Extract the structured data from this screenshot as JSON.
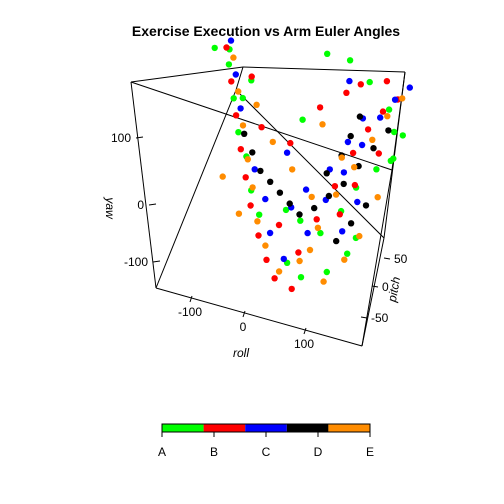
{
  "chart_data": {
    "type": "scatter3d",
    "title": "Exercise Execution vs Arm Euler Angles",
    "xlabel": "roll",
    "ylabel": "pitch",
    "zlabel": "yaw",
    "x_ticks": [
      "-100",
      "0",
      "100"
    ],
    "y_ticks": [
      "50",
      "0",
      "-50"
    ],
    "z_ticks": [
      "100",
      "0",
      "-100"
    ],
    "xlim": [
      -180,
      180
    ],
    "ylim": [
      -90,
      90
    ],
    "zlim": [
      -180,
      180
    ],
    "colorkey": {
      "labels": [
        "A",
        "B",
        "C",
        "D",
        "E"
      ],
      "colors": [
        "#00ff00",
        "#ff0000",
        "#0000ff",
        "#000000",
        "#ff8c00"
      ]
    },
    "series": [
      {
        "name": "A",
        "color": "#00ff00",
        "points": [
          [
            -140,
            60,
            120
          ],
          [
            -120,
            40,
            80
          ],
          [
            -100,
            20,
            40
          ],
          [
            -80,
            10,
            10
          ],
          [
            -60,
            -10,
            -30
          ],
          [
            -40,
            -20,
            -60
          ],
          [
            -120,
            70,
            60
          ],
          [
            -150,
            80,
            130
          ],
          [
            20,
            80,
            170
          ],
          [
            60,
            80,
            170
          ],
          [
            100,
            70,
            150
          ],
          [
            140,
            60,
            120
          ],
          [
            160,
            40,
            100
          ],
          [
            170,
            20,
            70
          ],
          [
            -20,
            30,
            -80
          ],
          [
            0,
            40,
            -100
          ],
          [
            30,
            50,
            -120
          ],
          [
            60,
            60,
            -80
          ],
          [
            80,
            70,
            -40
          ],
          [
            120,
            60,
            10
          ],
          [
            150,
            50,
            40
          ],
          [
            170,
            50,
            90
          ],
          [
            -160,
            50,
            150
          ],
          [
            -90,
            40,
            120
          ],
          [
            10,
            -20,
            -130
          ],
          [
            40,
            -30,
            -140
          ],
          [
            90,
            -40,
            -110
          ],
          [
            130,
            -50,
            -60
          ],
          [
            150,
            -60,
            -20
          ],
          [
            -10,
            60,
            60
          ]
        ]
      },
      {
        "name": "B",
        "color": "#ff0000",
        "points": [
          [
            -150,
            70,
            140
          ],
          [
            -130,
            50,
            100
          ],
          [
            -110,
            30,
            60
          ],
          [
            -90,
            10,
            20
          ],
          [
            -70,
            -10,
            -10
          ],
          [
            -50,
            -30,
            -40
          ],
          [
            -30,
            -40,
            -80
          ],
          [
            -10,
            -50,
            -110
          ],
          [
            10,
            -60,
            -130
          ],
          [
            40,
            -40,
            -90
          ],
          [
            60,
            -20,
            -40
          ],
          [
            80,
            0,
            10
          ],
          [
            100,
            20,
            60
          ],
          [
            120,
            30,
            100
          ],
          [
            140,
            40,
            130
          ],
          [
            160,
            50,
            150
          ],
          [
            100,
            -20,
            -20
          ],
          [
            120,
            -10,
            30
          ],
          [
            150,
            10,
            80
          ],
          [
            -60,
            20,
            60
          ],
          [
            -20,
            40,
            30
          ],
          [
            20,
            60,
            90
          ],
          [
            60,
            70,
            120
          ],
          [
            90,
            60,
            150
          ],
          [
            130,
            70,
            160
          ],
          [
            40,
            -60,
            -140
          ],
          [
            0,
            -30,
            -60
          ],
          [
            -100,
            60,
            110
          ]
        ]
      },
      {
        "name": "C",
        "color": "#0000ff",
        "points": [
          [
            -145,
            75,
            150
          ],
          [
            -125,
            55,
            110
          ],
          [
            -105,
            35,
            70
          ],
          [
            -60,
            0,
            0
          ],
          [
            -30,
            -20,
            -30
          ],
          [
            -10,
            -40,
            -70
          ],
          [
            20,
            -50,
            -100
          ],
          [
            50,
            -30,
            -60
          ],
          [
            70,
            -10,
            -10
          ],
          [
            90,
            10,
            30
          ],
          [
            110,
            30,
            70
          ],
          [
            130,
            50,
            110
          ],
          [
            150,
            60,
            140
          ],
          [
            170,
            70,
            160
          ],
          [
            60,
            20,
            20
          ],
          [
            80,
            40,
            60
          ],
          [
            100,
            50,
            100
          ],
          [
            30,
            0,
            -10
          ],
          [
            10,
            -10,
            -40
          ],
          [
            -20,
            30,
            20
          ],
          [
            70,
            60,
            150
          ],
          [
            110,
            -30,
            -40
          ],
          [
            130,
            -20,
            10
          ]
        ]
      },
      {
        "name": "D",
        "color": "#000000",
        "points": [
          [
            -90,
            20,
            40
          ],
          [
            -70,
            10,
            20
          ],
          [
            -50,
            0,
            0
          ],
          [
            -30,
            -5,
            -10
          ],
          [
            -10,
            -10,
            -20
          ],
          [
            10,
            -15,
            -30
          ],
          [
            30,
            -20,
            -40
          ],
          [
            50,
            -10,
            -30
          ],
          [
            70,
            0,
            -10
          ],
          [
            90,
            10,
            10
          ],
          [
            110,
            20,
            40
          ],
          [
            130,
            30,
            70
          ],
          [
            150,
            40,
            100
          ],
          [
            100,
            -30,
            -60
          ],
          [
            120,
            -20,
            -30
          ],
          [
            140,
            -10,
            0
          ],
          [
            60,
            10,
            20
          ],
          [
            80,
            20,
            50
          ],
          [
            90,
            30,
            80
          ],
          [
            100,
            40,
            110
          ]
        ]
      },
      {
        "name": "E",
        "color": "#ff8c00",
        "points": [
          [
            -135,
            65,
            130
          ],
          [
            -115,
            45,
            90
          ],
          [
            -95,
            25,
            50
          ],
          [
            -75,
            5,
            10
          ],
          [
            -55,
            -15,
            -20
          ],
          [
            -35,
            -35,
            -60
          ],
          [
            -15,
            -45,
            -90
          ],
          [
            15,
            -55,
            -120
          ],
          [
            45,
            -45,
            -100
          ],
          [
            65,
            -25,
            -50
          ],
          [
            85,
            -5,
            0
          ],
          [
            105,
            15,
            40
          ],
          [
            125,
            35,
            80
          ],
          [
            145,
            45,
            120
          ],
          [
            165,
            55,
            150
          ],
          [
            -80,
            40,
            80
          ],
          [
            -40,
            20,
            40
          ],
          [
            0,
            10,
            10
          ],
          [
            40,
            0,
            -20
          ],
          [
            60,
            -40,
            -80
          ],
          [
            90,
            -50,
            -120
          ],
          [
            120,
            -40,
            -80
          ],
          [
            140,
            -30,
            -40
          ],
          [
            160,
            -10,
            20
          ],
          [
            30,
            50,
            70
          ],
          [
            70,
            40,
            30
          ],
          [
            -110,
            -10,
            -20
          ],
          [
            -70,
            -30,
            -60
          ]
        ]
      }
    ]
  }
}
